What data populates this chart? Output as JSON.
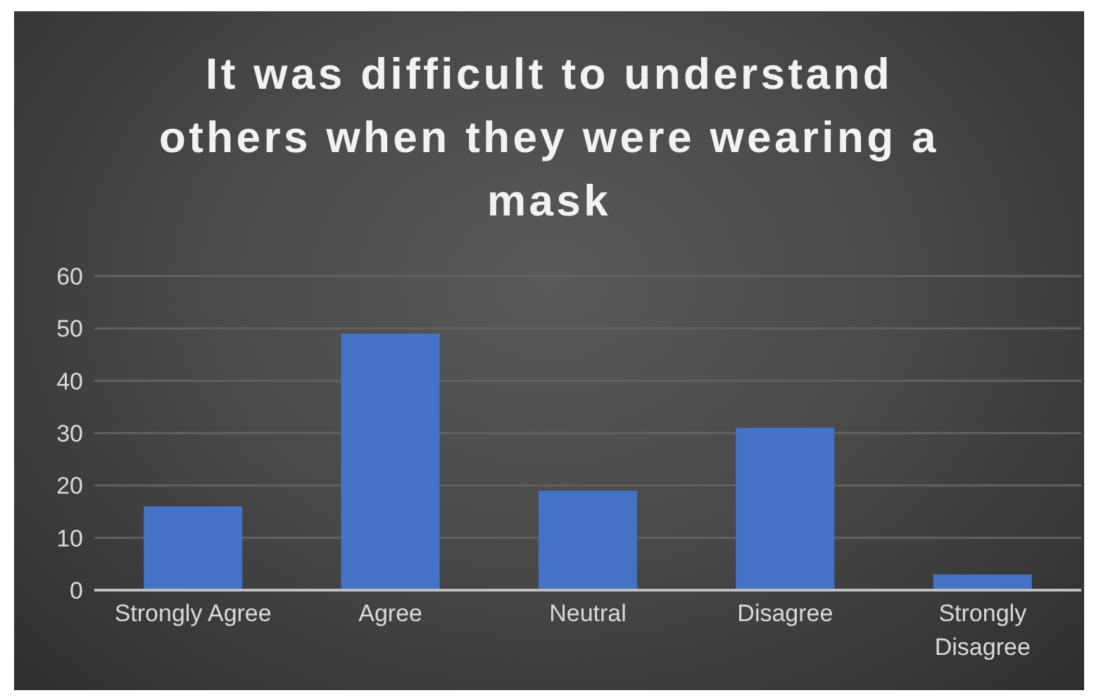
{
  "chart_data": {
    "type": "bar",
    "title": "It was difficult to understand others when they were wearing a mask",
    "categories": [
      "Strongly Agree",
      "Agree",
      "Neutral",
      "Disagree",
      "Strongly Disagree"
    ],
    "values": [
      16,
      49,
      19,
      31,
      3
    ],
    "color": "#4472c4",
    "ylim": [
      0,
      60
    ],
    "yticks": [
      0,
      10,
      20,
      30,
      40,
      50,
      60
    ],
    "grid": "y",
    "legend": false
  }
}
